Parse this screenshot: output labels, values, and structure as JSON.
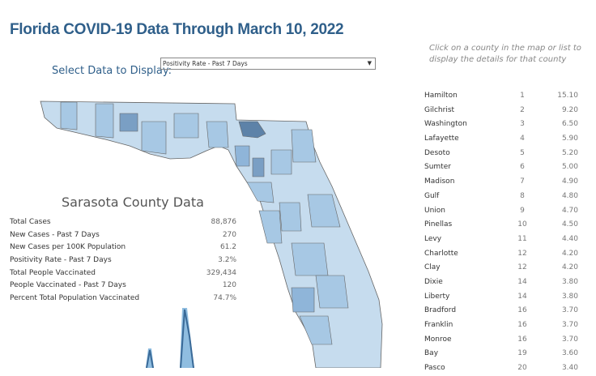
{
  "header": {
    "title": "Florida COVID-19 Data Through  March 10, 2022",
    "hint": "Click on a county in the map or list to display the details for that county"
  },
  "selector": {
    "label": "Select Data to Display:",
    "value": "Positivity Rate - Past 7 Days",
    "icon": "dropdown-arrow-icon"
  },
  "colors": {
    "title": "#2f5f8a",
    "light": "#c6dcee",
    "mid": "#a7c8e4",
    "dark": "#5d82a8"
  },
  "county": {
    "title": "Sarasota County Data",
    "stats": [
      {
        "label": "Total Cases",
        "value": "88,876"
      },
      {
        "label": "New Cases - Past 7 Days",
        "value": "270"
      },
      {
        "label": "New Cases per 100K Population",
        "value": "61.2"
      },
      {
        "label": "Positivity Rate - Past 7 Days",
        "value": "3.2%"
      },
      {
        "label": "Total People Vaccinated",
        "value": "329,434"
      },
      {
        "label": "People Vaccinated - Past 7 Days",
        "value": "120"
      },
      {
        "label": "Percent Total Population Vaccinated",
        "value": "74.7%"
      }
    ]
  },
  "ranking": [
    {
      "county": "Hamilton",
      "rank": "1",
      "value": "15.10"
    },
    {
      "county": "Gilchrist",
      "rank": "2",
      "value": "9.20"
    },
    {
      "county": "Washington",
      "rank": "3",
      "value": "6.50"
    },
    {
      "county": "Lafayette",
      "rank": "4",
      "value": "5.90"
    },
    {
      "county": "Desoto",
      "rank": "5",
      "value": "5.20"
    },
    {
      "county": "Sumter",
      "rank": "6",
      "value": "5.00"
    },
    {
      "county": "Madison",
      "rank": "7",
      "value": "4.90"
    },
    {
      "county": "Gulf",
      "rank": "8",
      "value": "4.80"
    },
    {
      "county": "Union",
      "rank": "9",
      "value": "4.70"
    },
    {
      "county": "Pinellas",
      "rank": "10",
      "value": "4.50"
    },
    {
      "county": "Levy",
      "rank": "11",
      "value": "4.40"
    },
    {
      "county": "Charlotte",
      "rank": "12",
      "value": "4.20"
    },
    {
      "county": "Clay",
      "rank": "12",
      "value": "4.20"
    },
    {
      "county": "Dixie",
      "rank": "14",
      "value": "3.80"
    },
    {
      "county": "Liberty",
      "rank": "14",
      "value": "3.80"
    },
    {
      "county": "Bradford",
      "rank": "16",
      "value": "3.70"
    },
    {
      "county": "Franklin",
      "rank": "16",
      "value": "3.70"
    },
    {
      "county": "Monroe",
      "rank": "16",
      "value": "3.70"
    },
    {
      "county": "Bay",
      "rank": "19",
      "value": "3.60"
    },
    {
      "county": "Pasco",
      "rank": "20",
      "value": "3.40"
    }
  ]
}
